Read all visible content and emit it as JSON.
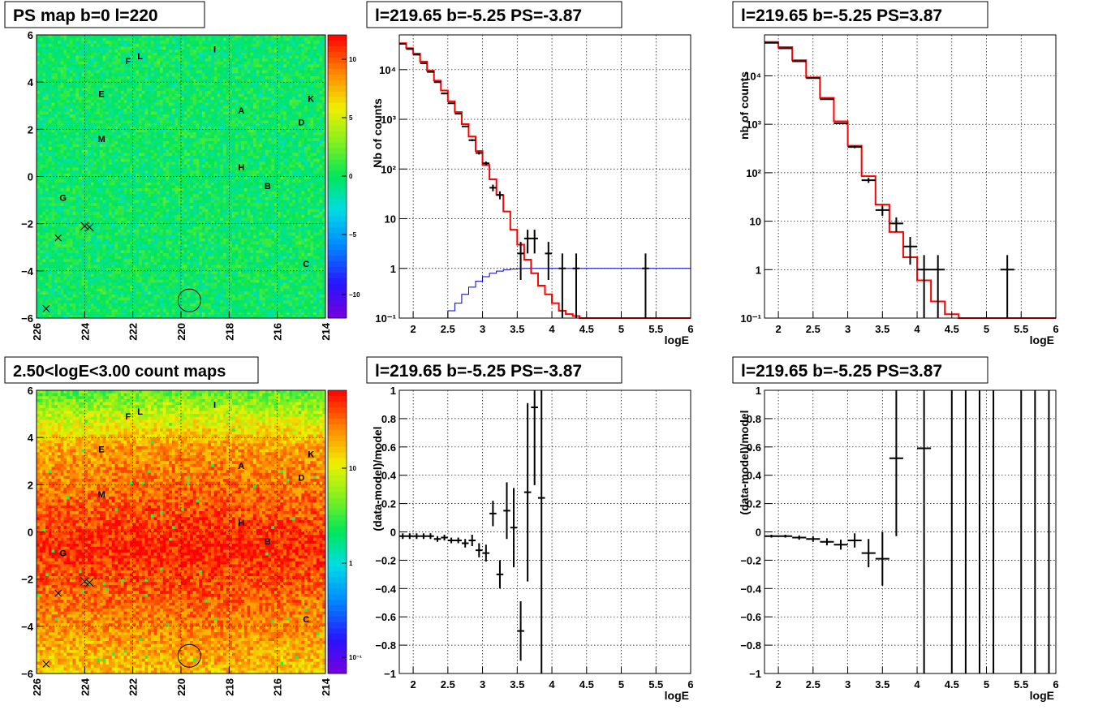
{
  "chart_data": [
    {
      "type": "heatmap",
      "title": "PS map b=0 l=220",
      "xlim": [
        226,
        214
      ],
      "ylim": [
        -6,
        6
      ],
      "x_ticks": [
        "226",
        "224",
        "222",
        "220",
        "218",
        "216",
        "214"
      ],
      "y_ticks": [
        "−6",
        "−4",
        "−2",
        "0",
        "2",
        "4",
        "6"
      ],
      "colorbar": {
        "ticks": [
          "10",
          "5",
          "0",
          "−5",
          "−10"
        ],
        "range": [
          -12,
          12
        ]
      },
      "sources": [
        {
          "name": "I",
          "l": 218.6,
          "b": 5.4
        },
        {
          "name": "L",
          "l": 221.7,
          "b": 5.1
        },
        {
          "name": "F",
          "l": 222.2,
          "b": 4.9
        },
        {
          "name": "E",
          "l": 223.3,
          "b": 3.5
        },
        {
          "name": "K",
          "l": 214.6,
          "b": 3.3
        },
        {
          "name": "A",
          "l": 217.5,
          "b": 2.8
        },
        {
          "name": "D",
          "l": 215.0,
          "b": 2.3
        },
        {
          "name": "M",
          "l": 223.3,
          "b": 1.6
        },
        {
          "name": "H",
          "l": 217.5,
          "b": 0.4
        },
        {
          "name": "B",
          "l": 216.4,
          "b": -0.4
        },
        {
          "name": "G",
          "l": 224.9,
          "b": -0.9
        },
        {
          "name": "C",
          "l": 214.8,
          "b": -3.7
        }
      ]
    },
    {
      "type": "line",
      "title": "l=219.65 b=-5.25 PS=-3.87",
      "xlabel": "logE",
      "ylabel": "Nb of counts",
      "yscale": "log",
      "xlim": [
        1.8,
        6.0
      ],
      "ylim": [
        0.1,
        50000
      ],
      "x_ticks": [
        "2",
        "2.5",
        "3",
        "3.5",
        "4",
        "4.5",
        "5",
        "5.5",
        "6"
      ],
      "y_ticks": [
        "10⁻¹",
        "1",
        "10",
        "10²",
        "10³",
        "10⁴"
      ],
      "x": [
        1.85,
        1.95,
        2.05,
        2.15,
        2.25,
        2.35,
        2.45,
        2.55,
        2.65,
        2.75,
        2.85,
        2.95,
        3.05,
        3.15,
        3.25,
        3.35,
        3.45,
        3.55,
        3.65,
        3.75,
        3.85,
        3.95,
        4.05,
        4.15,
        4.25,
        4.35,
        4.45,
        4.55,
        4.65,
        4.75,
        4.85,
        4.95,
        5.05,
        5.15,
        5.25,
        5.35,
        5.45,
        5.55,
        5.65,
        5.75,
        5.85,
        5.95
      ],
      "data": [
        33000,
        26000,
        20000,
        13500,
        9000,
        5600,
        3300,
        2100,
        1300,
        720,
        380,
        210,
        130,
        42,
        30,
        0,
        0,
        2,
        4,
        4,
        0,
        2,
        0,
        1,
        0,
        1,
        0,
        0,
        0,
        0,
        0,
        0,
        0,
        0,
        0,
        1,
        0,
        0,
        0,
        0,
        0,
        0
      ],
      "model": [
        34000,
        27000,
        21000,
        14500,
        9500,
        6000,
        3800,
        2300,
        1400,
        800,
        450,
        230,
        120,
        62,
        30,
        14,
        6,
        3,
        1.5,
        0.8,
        0.45,
        0.3,
        0.2,
        0.14,
        0.12,
        0.11,
        0.1,
        0.1,
        0.1,
        0.1,
        0.1,
        0.1,
        0.1,
        0.1,
        0.1,
        0.1,
        0.1,
        0.1,
        0.1,
        0.1,
        0.1,
        0.1
      ],
      "efficiency": [
        0.1,
        0.1,
        0.1,
        0.1,
        0.1,
        0.1,
        0.1,
        0.14,
        0.2,
        0.3,
        0.42,
        0.55,
        0.68,
        0.8,
        0.88,
        0.94,
        0.97,
        0.99,
        1,
        1,
        1,
        1,
        1,
        1,
        1,
        1,
        1,
        1,
        1,
        1,
        1,
        1,
        1,
        1,
        1,
        1,
        1,
        1,
        1,
        1,
        1,
        1
      ]
    },
    {
      "type": "line",
      "title": "l=219.65 b=-5.25 PS=3.87",
      "xlabel": "logE",
      "ylabel": "nb of counts",
      "yscale": "log",
      "xlim": [
        1.8,
        6.0
      ],
      "ylim": [
        0.1,
        70000
      ],
      "x_ticks": [
        "2",
        "2.5",
        "3",
        "3.5",
        "4",
        "4.5",
        "5",
        "5.5",
        "6"
      ],
      "y_ticks": [
        "10⁻¹",
        "1",
        "10",
        "10²",
        "10³",
        "10⁴"
      ],
      "x": [
        1.9,
        2.1,
        2.3,
        2.5,
        2.7,
        2.9,
        3.1,
        3.3,
        3.5,
        3.7,
        3.9,
        4.1,
        4.3,
        4.5,
        4.7,
        4.9,
        5.1,
        5.3,
        5.5,
        5.7,
        5.9
      ],
      "data": [
        48000,
        37000,
        20000,
        9000,
        3300,
        1050,
        340,
        70,
        17,
        9,
        3,
        1,
        1,
        0,
        0,
        0,
        0,
        1,
        0,
        0,
        0
      ],
      "model": [
        50000,
        39000,
        21000,
        9300,
        3500,
        1150,
        360,
        85,
        22,
        6,
        1.8,
        0.6,
        0.22,
        0.12,
        0.1,
        0.1,
        0.1,
        0.1,
        0.1,
        0.1,
        0.1
      ]
    },
    {
      "type": "heatmap",
      "title": "2.50<logE<3.00 count maps",
      "xlim": [
        226,
        214
      ],
      "ylim": [
        -6,
        6
      ],
      "x_ticks": [
        "226",
        "224",
        "222",
        "220",
        "218",
        "216",
        "214"
      ],
      "y_ticks": [
        "−6",
        "−4",
        "−2",
        "0",
        "2",
        "4",
        "6"
      ],
      "colorbar": {
        "ticks": [
          "10",
          "1",
          "10⁻¹"
        ],
        "scale": "log"
      }
    },
    {
      "type": "scatter",
      "title": "l=219.65 b=-5.25 PS=-3.87",
      "xlabel": "logE",
      "ylabel": "(data-model)/model",
      "xlim": [
        1.8,
        6.0
      ],
      "ylim": [
        -1,
        1
      ],
      "x_ticks": [
        "2",
        "2.5",
        "3",
        "3.5",
        "4",
        "4.5",
        "5",
        "5.5",
        "6"
      ],
      "y_ticks": [
        "−1",
        "−0.8",
        "−0.6",
        "−0.4",
        "−0.2",
        "0",
        "0.2",
        "0.4",
        "0.6",
        "0.8",
        "1"
      ],
      "points": [
        {
          "x": 1.85,
          "y": -0.03,
          "e": 0.02
        },
        {
          "x": 1.95,
          "y": -0.03,
          "e": 0.02
        },
        {
          "x": 2.05,
          "y": -0.03,
          "e": 0.02
        },
        {
          "x": 2.15,
          "y": -0.03,
          "e": 0.02
        },
        {
          "x": 2.25,
          "y": -0.03,
          "e": 0.02
        },
        {
          "x": 2.35,
          "y": -0.05,
          "e": 0.02
        },
        {
          "x": 2.45,
          "y": -0.04,
          "e": 0.02
        },
        {
          "x": 2.55,
          "y": -0.06,
          "e": 0.02
        },
        {
          "x": 2.65,
          "y": -0.06,
          "e": 0.02
        },
        {
          "x": 2.75,
          "y": -0.08,
          "e": 0.03
        },
        {
          "x": 2.85,
          "y": -0.06,
          "e": 0.04
        },
        {
          "x": 2.95,
          "y": -0.13,
          "e": 0.05
        },
        {
          "x": 3.05,
          "y": -0.15,
          "e": 0.06
        },
        {
          "x": 3.15,
          "y": 0.13,
          "e": 0.09
        },
        {
          "x": 3.25,
          "y": -0.3,
          "e": 0.1
        },
        {
          "x": 3.35,
          "y": 0.15,
          "e": 0.2
        },
        {
          "x": 3.45,
          "y": 0.03,
          "e": 0.28
        },
        {
          "x": 3.55,
          "y": -0.7,
          "e": 0.21
        },
        {
          "x": 3.65,
          "y": 0.28,
          "e": 0.63
        },
        {
          "x": 3.75,
          "y": 0.88,
          "e": 0.55
        },
        {
          "x": 3.85,
          "y": 0.24,
          "e": 1.4
        }
      ]
    },
    {
      "type": "scatter",
      "title": "l=219.65 b=-5.25 PS=3.87",
      "xlabel": "logE",
      "ylabel": "(data-model)/model",
      "xlim": [
        1.8,
        6.0
      ],
      "ylim": [
        -1,
        1
      ],
      "x_ticks": [
        "2",
        "2.5",
        "3",
        "3.5",
        "4",
        "4.5",
        "5",
        "5.5",
        "6"
      ],
      "y_ticks": [
        "−1",
        "−0.8",
        "−0.6",
        "−0.4",
        "−0.2",
        "0",
        "0.2",
        "0.4",
        "0.6",
        "0.8",
        "1"
      ],
      "points": [
        {
          "x": 1.9,
          "y": -0.03,
          "e": 0.01
        },
        {
          "x": 2.1,
          "y": -0.03,
          "e": 0.01
        },
        {
          "x": 2.3,
          "y": -0.04,
          "e": 0.015
        },
        {
          "x": 2.5,
          "y": -0.05,
          "e": 0.02
        },
        {
          "x": 2.7,
          "y": -0.07,
          "e": 0.025
        },
        {
          "x": 2.9,
          "y": -0.09,
          "e": 0.035
        },
        {
          "x": 3.1,
          "y": -0.06,
          "e": 0.05
        },
        {
          "x": 3.3,
          "y": -0.15,
          "e": 0.1
        },
        {
          "x": 3.5,
          "y": -0.19,
          "e": 0.19
        },
        {
          "x": 3.7,
          "y": 0.52,
          "e": 0.55
        },
        {
          "x": 4.1,
          "y": 0.59,
          "e": 1.6
        },
        {
          "x": 4.5,
          "y": 0,
          "e": 5
        },
        {
          "x": 4.7,
          "y": 0,
          "e": 5
        },
        {
          "x": 4.9,
          "y": 0,
          "e": 5
        },
        {
          "x": 5.1,
          "y": 0,
          "e": 5
        },
        {
          "x": 5.5,
          "y": 0,
          "e": 5
        },
        {
          "x": 5.7,
          "y": 0,
          "e": 5
        },
        {
          "x": 5.9,
          "y": 0,
          "e": 5
        }
      ]
    }
  ]
}
